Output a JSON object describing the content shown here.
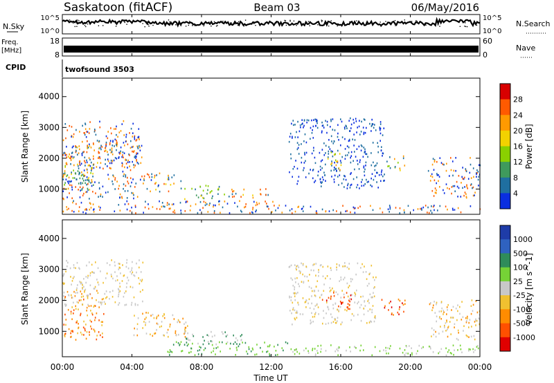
{
  "header": {
    "station": "Saskatoon (fitACF)",
    "beam": "Beam 03",
    "date": "06/May/2016"
  },
  "strips": {
    "nsky_label": "N.Sky",
    "nsky_ticks": [
      "10^5",
      "10^0"
    ],
    "nsearch_label": "N.Search",
    "nsearch_ticks": [
      "10^5",
      "10^0"
    ],
    "freq_label": "Freq.",
    "freq_unit": "[MHz]",
    "freq_ticks": [
      "18",
      "8"
    ],
    "nave_label": "Nave",
    "nave_ticks": [
      "60",
      "0"
    ],
    "cpid_label": "CPID",
    "cpid_value": "twofsound 3503"
  },
  "chart_data": [
    {
      "type": "heatmap",
      "name": "power-panel",
      "ylabel": "Slant Range [km]",
      "yticks": [
        1000,
        2000,
        3000,
        4000
      ],
      "ylim": [
        180,
        4600
      ],
      "colorbar": {
        "label": "Power [dB]",
        "ticks": [
          "28",
          "24",
          "20",
          "16",
          "12",
          "8",
          "4"
        ],
        "colors": [
          "#d80000",
          "#ff5a00",
          "#ff9a00",
          "#f2d200",
          "#8ad000",
          "#3f9a5c",
          "#1f6fa0",
          "#0a2ee0"
        ]
      },
      "regions": [
        {
          "t": [
            0.0,
            4.4
          ],
          "r": [
            650,
            3200
          ],
          "levels": [
            1,
            2,
            6,
            7
          ]
        },
        {
          "t": [
            0.0,
            1.8
          ],
          "r": [
            950,
            1800
          ],
          "levels": [
            3,
            4,
            5,
            6
          ]
        },
        {
          "t": [
            0.2,
            1.6
          ],
          "r": [
            1050,
            1550
          ],
          "levels": [
            5,
            6,
            7
          ]
        },
        {
          "t": [
            0.0,
            2.6
          ],
          "r": [
            1750,
            2400
          ],
          "levels": [
            1,
            2,
            3,
            6
          ]
        },
        {
          "t": [
            2.4,
            4.6
          ],
          "r": [
            1800,
            2600
          ],
          "levels": [
            1,
            2,
            6,
            7
          ]
        },
        {
          "t": [
            4.4,
            6.8
          ],
          "r": [
            900,
            1500
          ],
          "levels": [
            1,
            2,
            3,
            6,
            7
          ]
        },
        {
          "t": [
            7.0,
            9.4
          ],
          "r": [
            650,
            1100
          ],
          "levels": [
            3,
            4,
            5,
            6
          ]
        },
        {
          "t": [
            9.4,
            12.0
          ],
          "r": [
            700,
            1000
          ],
          "levels": [
            1,
            2,
            3,
            6
          ]
        },
        {
          "t": [
            0.0,
            12.5
          ],
          "r": [
            200,
            600
          ],
          "levels": [
            1,
            2,
            6,
            7
          ]
        },
        {
          "t": [
            12.5,
            24.0
          ],
          "r": [
            200,
            450
          ],
          "levels": [
            1,
            2,
            6,
            7
          ]
        },
        {
          "t": [
            13.0,
            18.5
          ],
          "r": [
            1000,
            3300
          ],
          "levels": [
            6,
            7
          ]
        },
        {
          "t": [
            15.2,
            16.4
          ],
          "r": [
            1600,
            2200
          ],
          "levels": [
            2,
            3,
            4,
            6
          ]
        },
        {
          "t": [
            18.6,
            19.7
          ],
          "r": [
            1550,
            2050
          ],
          "levels": [
            2,
            3,
            4,
            6
          ]
        },
        {
          "t": [
            21.0,
            24.0
          ],
          "r": [
            700,
            2000
          ],
          "levels": [
            1,
            2,
            6,
            7
          ]
        }
      ]
    },
    {
      "type": "heatmap",
      "name": "velocity-panel",
      "ylabel": "Slant Range [km]",
      "yticks": [
        1000,
        2000,
        3000,
        4000
      ],
      "ylim": [
        180,
        4600
      ],
      "colorbar": {
        "label": "Velocity [m s^-1]",
        "ticks": [
          "1000",
          "500",
          "100",
          "25",
          "-25",
          "-100",
          "-500",
          "-1000"
        ],
        "colors": [
          "#1e3ca8",
          "#2f62c0",
          "#2f8c5a",
          "#76d236",
          "#c8c8c8",
          "#f0c030",
          "#ff8c00",
          "#ff5000",
          "#e00000"
        ]
      },
      "regions": [
        {
          "t": [
            0.0,
            2.4
          ],
          "r": [
            700,
            2300
          ],
          "levels": [
            6,
            7,
            5
          ]
        },
        {
          "t": [
            0.0,
            4.6
          ],
          "r": [
            1800,
            3300
          ],
          "levels": [
            4,
            4,
            5
          ]
        },
        {
          "t": [
            4.0,
            7.2
          ],
          "r": [
            800,
            1600
          ],
          "levels": [
            4,
            5,
            6
          ]
        },
        {
          "t": [
            7.0,
            10.5
          ],
          "r": [
            550,
            1000
          ],
          "levels": [
            4,
            4,
            2
          ]
        },
        {
          "t": [
            6.0,
            13.0
          ],
          "r": [
            200,
            650
          ],
          "levels": [
            3,
            3,
            2
          ]
        },
        {
          "t": [
            13.0,
            24.0
          ],
          "r": [
            200,
            550
          ],
          "levels": [
            3,
            3,
            4
          ]
        },
        {
          "t": [
            13.0,
            18.0
          ],
          "r": [
            1200,
            3200
          ],
          "levels": [
            4,
            4,
            5
          ]
        },
        {
          "t": [
            14.8,
            16.6
          ],
          "r": [
            1700,
            2250
          ],
          "levels": [
            7,
            7,
            8
          ]
        },
        {
          "t": [
            18.3,
            19.8
          ],
          "r": [
            1500,
            2050
          ],
          "levels": [
            7,
            8,
            6
          ]
        },
        {
          "t": [
            21.0,
            24.0
          ],
          "r": [
            700,
            2000
          ],
          "levels": [
            4,
            6,
            5
          ]
        }
      ]
    }
  ],
  "xaxis": {
    "label": "Time UT",
    "ticks": [
      "00:00",
      "04:00",
      "08:00",
      "12:00",
      "16:00",
      "20:00",
      "00:00"
    ],
    "range_hours": [
      0,
      24
    ]
  }
}
